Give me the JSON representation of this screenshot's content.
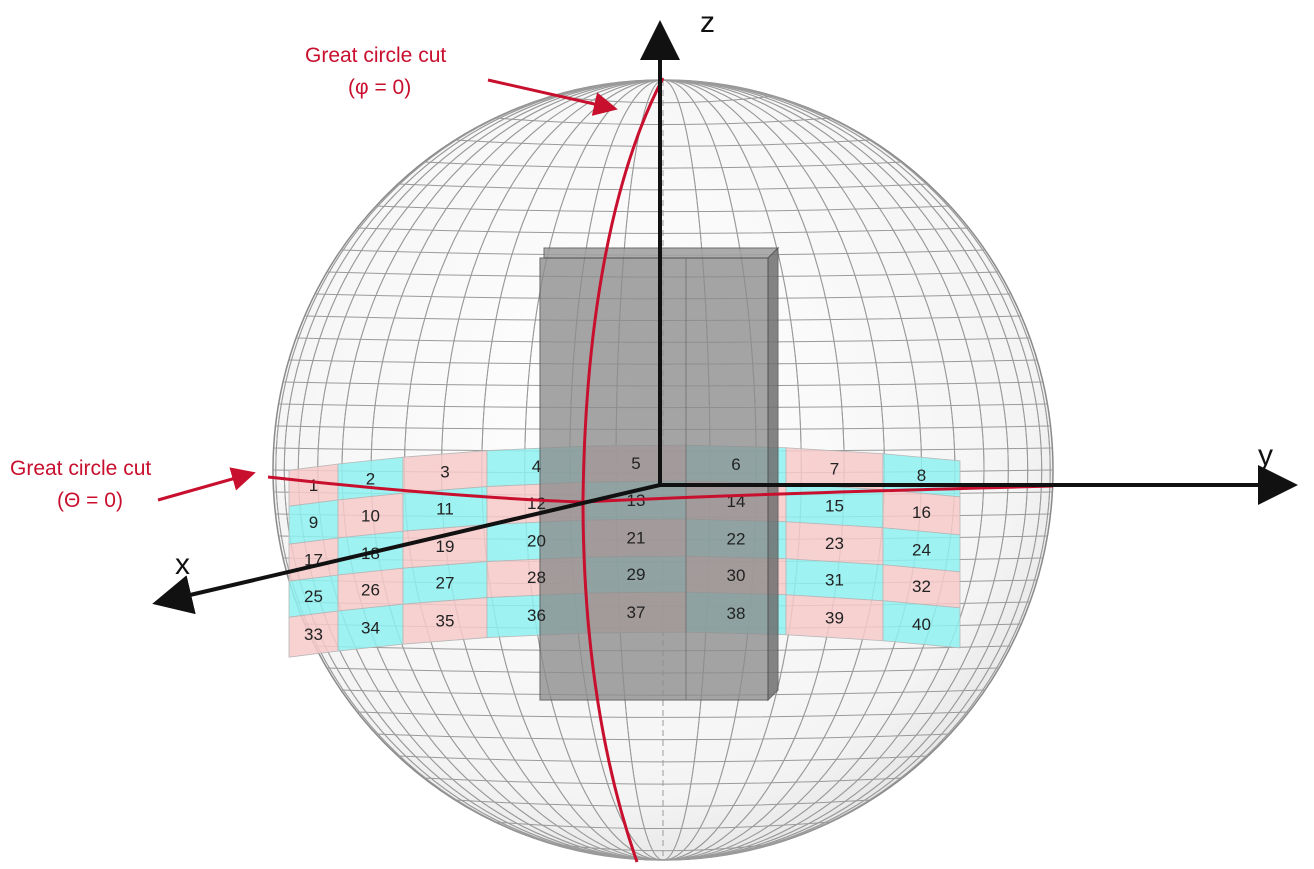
{
  "colors": {
    "cut_red": "#c8102e",
    "axis_black": "#111111",
    "cell_pink": "#f7c9c9",
    "cell_cyan": "#8ef1f1",
    "box_gray": "#8c8c8c",
    "grid_gray": "#9a9a9a"
  },
  "annotations": {
    "phi_cut": {
      "line1": "Great circle cut",
      "line2": "(φ = 0)"
    },
    "theta_cut": {
      "line1": "Great circle cut",
      "line2": "(Θ = 0)"
    }
  },
  "axes": {
    "x": "x",
    "y": "y",
    "z": "z"
  },
  "cells": {
    "row1": [
      "1",
      "2",
      "3",
      "4",
      "5",
      "6",
      "7",
      "8"
    ],
    "row2": [
      "9",
      "10",
      "11",
      "12",
      "13",
      "14",
      "15",
      "16"
    ],
    "row3": [
      "17",
      "18",
      "19",
      "20",
      "21",
      "22",
      "23",
      "24"
    ],
    "row4": [
      "25",
      "26",
      "27",
      "28",
      "29",
      "30",
      "31",
      "32"
    ],
    "row5": [
      "33",
      "34",
      "35",
      "36",
      "37",
      "38",
      "39",
      "40"
    ]
  }
}
